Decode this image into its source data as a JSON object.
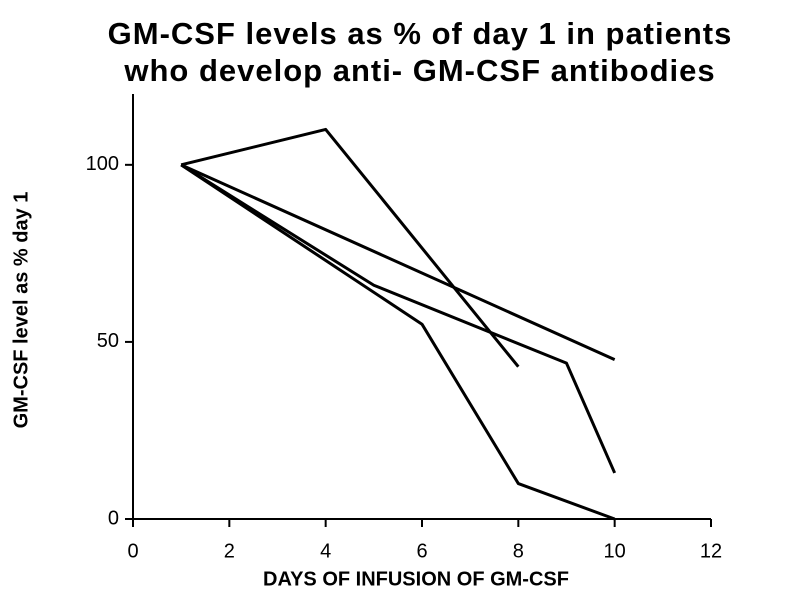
{
  "chart_data": {
    "type": "line",
    "title": [
      "GM-CSF levels as % of day 1 in patients",
      "who develop anti- GM-CSF antibodies"
    ],
    "x_label": "DAYS OF INFUSION OF GM-CSF",
    "y_label": "GM-CSF level as % day 1",
    "series": [
      {
        "color": "#000000",
        "x": [
          1,
          4,
          8
        ],
        "values": [
          100,
          110,
          43
        ]
      },
      {
        "color": "#000000",
        "x": [
          1,
          5,
          9,
          10
        ],
        "values": [
          100,
          66,
          44,
          13
        ]
      },
      {
        "color": "#000000",
        "x": [
          1,
          6,
          8,
          10
        ],
        "values": [
          100,
          55,
          10,
          0
        ]
      },
      {
        "color": "#000000",
        "x": [
          1,
          10
        ],
        "values": [
          100,
          45
        ]
      }
    ],
    "xlim": [
      0,
      12
    ],
    "xticks": [
      0,
      2,
      4,
      6,
      8,
      10,
      12
    ],
    "ylim": [
      0,
      120
    ],
    "yticks": [
      0,
      50,
      100
    ],
    "grid": false
  }
}
